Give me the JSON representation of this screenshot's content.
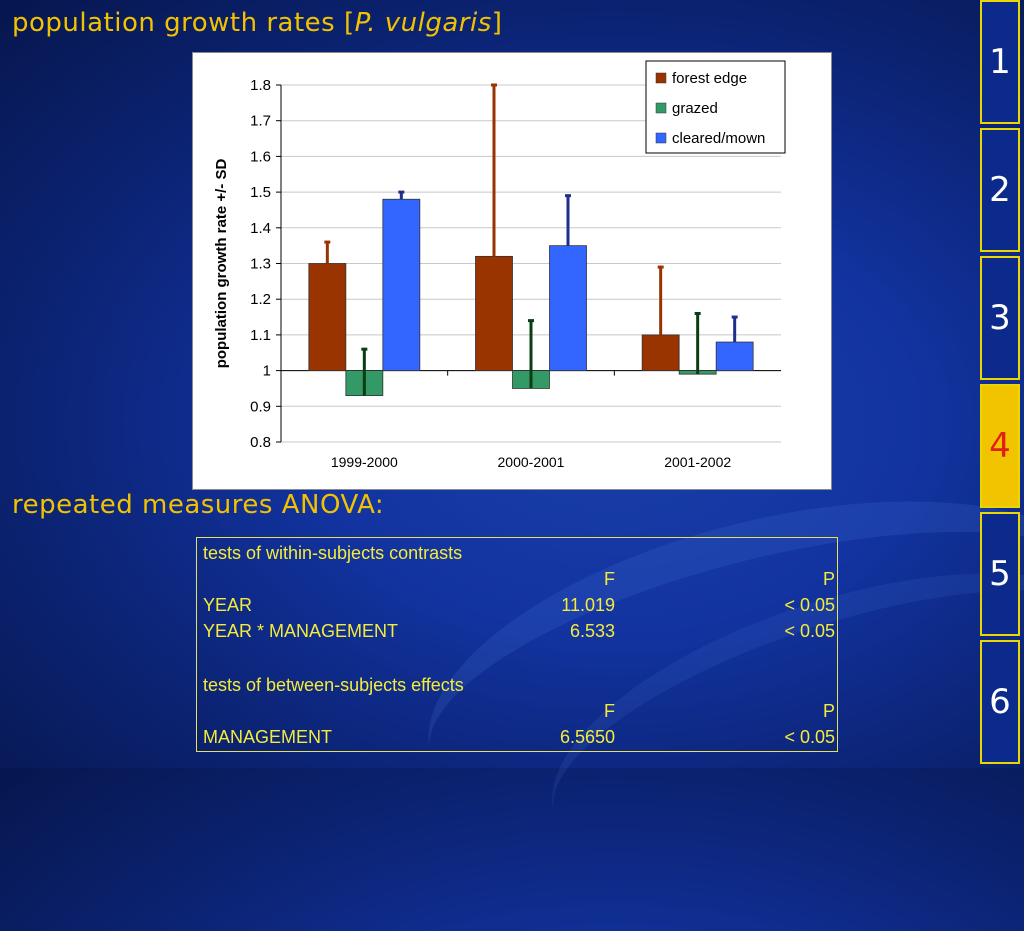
{
  "slide": {
    "title_prefix": "population growth rates [",
    "title_italic": "P. vulgaris",
    "title_suffix": "]",
    "anova_heading": "repeated measures ANOVA:"
  },
  "chart_data": {
    "type": "bar",
    "categories": [
      "1999-2000",
      "2000-2001",
      "2001-2002"
    ],
    "series": [
      {
        "name": "forest edge",
        "values": [
          1.3,
          1.32,
          1.1
        ],
        "error_sd": [
          0.06,
          0.48,
          0.19
        ],
        "color": "#993300"
      },
      {
        "name": "grazed",
        "values": [
          0.93,
          0.95,
          0.99
        ],
        "error_sd": [
          0.13,
          0.19,
          0.17
        ],
        "color": "#339966"
      },
      {
        "name": "cleared/mown",
        "values": [
          1.48,
          1.35,
          1.08
        ],
        "error_sd": [
          0.02,
          0.14,
          0.07
        ],
        "color": "#3366ff"
      }
    ],
    "baseline": 1,
    "ylabel": "population growth rate +/- SD",
    "xlabel": "",
    "ylim": [
      0.8,
      1.8
    ],
    "yticks": [
      "0.8",
      "0.9",
      "1",
      "1.1",
      "1.2",
      "1.3",
      "1.4",
      "1.5",
      "1.6",
      "1.7",
      "1.8"
    ],
    "grid": true,
    "legend_position": "top-right"
  },
  "anova": {
    "within_title": "tests of within-subjects contrasts",
    "col_f": "F",
    "col_p": "P",
    "within_rows": [
      {
        "label": "YEAR",
        "f": "11.019",
        "p": "< 0.05"
      },
      {
        "label": "YEAR * MANAGEMENT",
        "f": "6.533",
        "p": "< 0.05"
      }
    ],
    "between_title": "tests of between-subjects effects",
    "between_rows": [
      {
        "label": "MANAGEMENT",
        "f": "6.5650",
        "p": "< 0.05"
      }
    ]
  },
  "nav": {
    "items": [
      "1",
      "2",
      "3",
      "4",
      "5",
      "6"
    ],
    "active_index": 3,
    "active_color": "#f2c400"
  }
}
